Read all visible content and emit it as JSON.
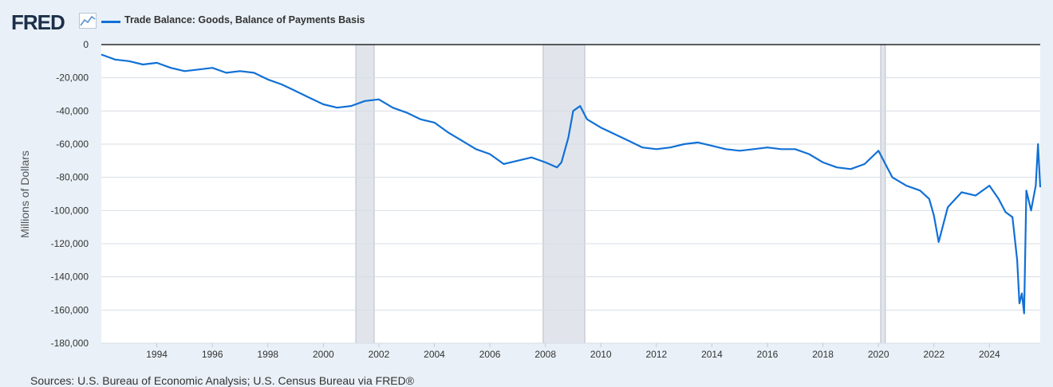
{
  "header": {
    "logo_text": "FRED",
    "logo_icon": "line-chart-icon",
    "series_label": "Trade Balance: Goods, Balance of Payments Basis",
    "series_color": "#1170d6"
  },
  "footer": {
    "source": "Sources: U.S. Bureau of Economic Analysis; U.S. Census Bureau via FRED®"
  },
  "chart_data": {
    "type": "line",
    "title": "",
    "xlabel": "",
    "ylabel": "Millions of Dollars",
    "xlim": [
      1992.0,
      2025.83
    ],
    "ylim": [
      -180000,
      0
    ],
    "grid": true,
    "legend_position": "top-left",
    "yticks": [
      0,
      -20000,
      -40000,
      -60000,
      -80000,
      -100000,
      -120000,
      -140000,
      -160000,
      -180000
    ],
    "ytick_labels": [
      "0",
      "-20,000",
      "-40,000",
      "-60,000",
      "-80,000",
      "-100,000",
      "-120,000",
      "-140,000",
      "-160,000",
      "-180,000"
    ],
    "xticks": [
      1994,
      1996,
      1998,
      2000,
      2002,
      2004,
      2006,
      2008,
      2010,
      2012,
      2014,
      2016,
      2018,
      2020,
      2022,
      2024
    ],
    "xtick_labels": [
      "1994",
      "1996",
      "1998",
      "2000",
      "2002",
      "2004",
      "2006",
      "2008",
      "2010",
      "2012",
      "2014",
      "2016",
      "2018",
      "2020",
      "2022",
      "2024"
    ],
    "recessions": [
      [
        2001.17,
        2001.83
      ],
      [
        2007.92,
        2009.42
      ],
      [
        2020.08,
        2020.25
      ]
    ],
    "series": [
      {
        "color": "#1170d6",
        "x": [
          1992.0,
          1992.5,
          1993.0,
          1993.5,
          1994.0,
          1994.5,
          1995.0,
          1995.5,
          1996.0,
          1996.5,
          1997.0,
          1997.5,
          1998.0,
          1998.5,
          1999.0,
          1999.5,
          2000.0,
          2000.5,
          2001.0,
          2001.5,
          2002.0,
          2002.5,
          2003.0,
          2003.5,
          2004.0,
          2004.5,
          2005.0,
          2005.5,
          2006.0,
          2006.5,
          2007.0,
          2007.5,
          2008.0,
          2008.42,
          2008.58,
          2008.83,
          2009.0,
          2009.25,
          2009.5,
          2010.0,
          2010.5,
          2011.0,
          2011.5,
          2012.0,
          2012.5,
          2013.0,
          2013.5,
          2014.0,
          2014.5,
          2015.0,
          2015.5,
          2016.0,
          2016.5,
          2017.0,
          2017.5,
          2018.0,
          2018.5,
          2019.0,
          2019.5,
          2020.0,
          2020.25,
          2020.5,
          2021.0,
          2021.5,
          2021.83,
          2022.0,
          2022.17,
          2022.5,
          2023.0,
          2023.5,
          2024.0,
          2024.33,
          2024.58,
          2024.83,
          2025.0,
          2025.08,
          2025.17,
          2025.25,
          2025.33,
          2025.5,
          2025.67,
          2025.75,
          2025.83
        ],
        "values": [
          -6000,
          -9000,
          -10000,
          -12000,
          -11000,
          -14000,
          -16000,
          -15000,
          -14000,
          -17000,
          -16000,
          -17000,
          -21000,
          -24000,
          -28000,
          -32000,
          -36000,
          -38000,
          -37000,
          -34000,
          -33000,
          -38000,
          -41000,
          -45000,
          -47000,
          -53000,
          -58000,
          -63000,
          -66000,
          -72000,
          -70000,
          -68000,
          -71000,
          -74000,
          -71000,
          -56000,
          -40000,
          -37000,
          -45000,
          -50000,
          -54000,
          -58000,
          -62000,
          -63000,
          -62000,
          -60000,
          -59000,
          -61000,
          -63000,
          -64000,
          -63000,
          -62000,
          -63000,
          -63000,
          -66000,
          -71000,
          -74000,
          -75000,
          -72000,
          -64000,
          -72000,
          -80000,
          -85000,
          -88000,
          -93000,
          -103000,
          -119000,
          -98000,
          -89000,
          -91000,
          -85000,
          -93000,
          -101000,
          -104000,
          -130000,
          -156000,
          -150000,
          -162000,
          -88000,
          -100000,
          -85000,
          -60000,
          -86000
        ]
      }
    ]
  }
}
